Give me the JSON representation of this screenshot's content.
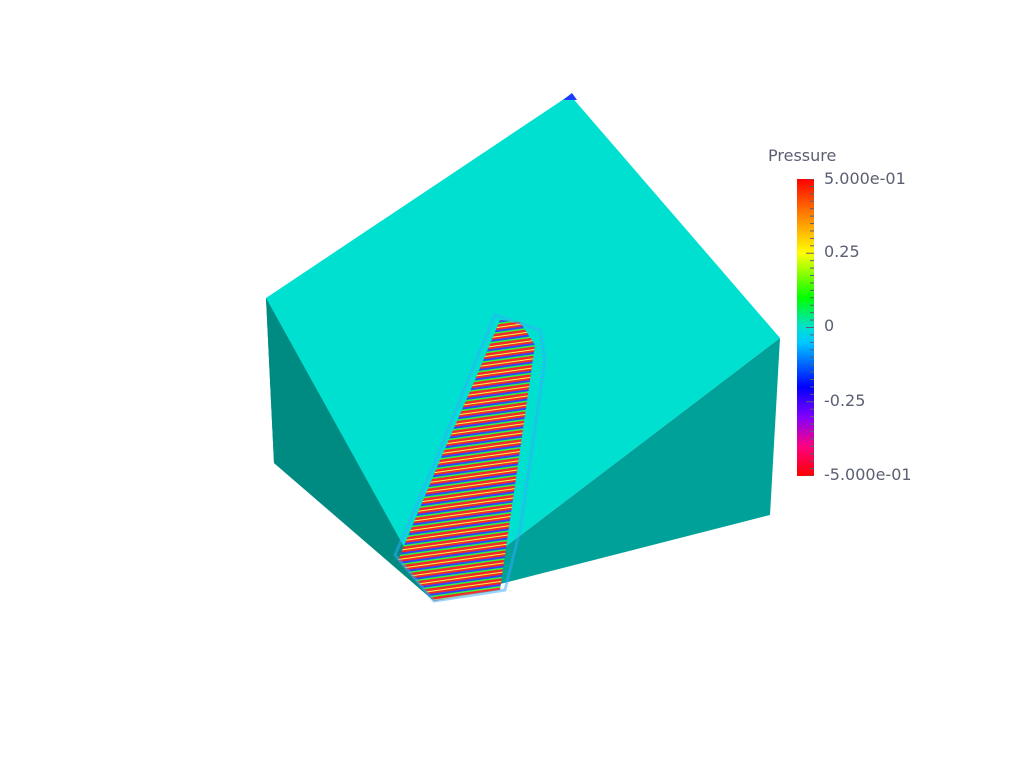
{
  "scene": {
    "background": "#ffffff",
    "colors": {
      "top_face": "#00e0d0",
      "left_face": "#008b82",
      "right_face": "#00a199"
    },
    "feature": "pressure-wave-band"
  },
  "legend": {
    "title": "Pressure",
    "colormap": [
      "#ff0000",
      "#ff0080",
      "#8000ff",
      "#0000ff",
      "#00c8ff",
      "#00e0d0",
      "#00ff00",
      "#ffff00",
      "#ff8000",
      "#ff0000"
    ],
    "ticks": [
      {
        "label": "5.000e-01",
        "value": 0.5
      },
      {
        "label": "0.25",
        "value": 0.25
      },
      {
        "label": "0",
        "value": 0
      },
      {
        "label": "-0.25",
        "value": -0.25
      },
      {
        "label": "-5.000e-01",
        "value": -0.5
      }
    ]
  }
}
